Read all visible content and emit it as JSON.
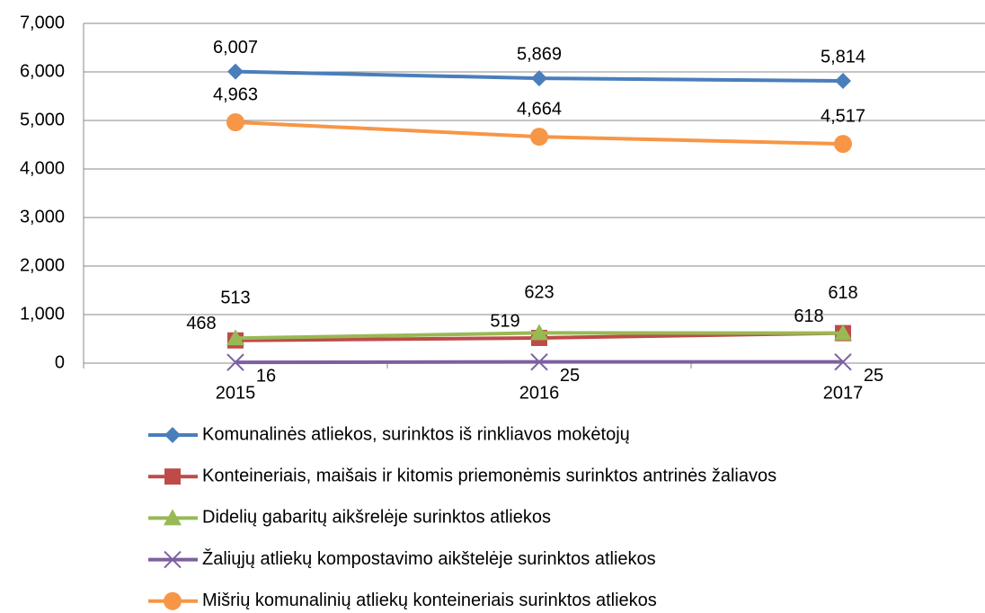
{
  "chart_data": {
    "type": "line",
    "categories": [
      "2015",
      "2016",
      "2017"
    ],
    "ylim": [
      0,
      7000
    ],
    "yticks": [
      0,
      {
        "value": 1000,
        "label": "1,000"
      },
      {
        "value": 2000,
        "label": "2,000"
      },
      {
        "value": 3000,
        "label": "3,000"
      },
      {
        "value": 4000,
        "label": "4,000"
      },
      {
        "value": 5000,
        "label": "5,000"
      },
      {
        "value": 6000,
        "label": "6,000"
      },
      {
        "value": 7000,
        "label": "7,000"
      }
    ],
    "grid": true,
    "legend": "bottom",
    "series": [
      {
        "name": "Komunalinės atliekos, surinktos iš rinkliavos mokėtojų",
        "color": "#4a7ebb",
        "marker": "diamond",
        "values": [
          6007,
          5869,
          5814
        ],
        "value_labels": [
          "6,007",
          "5,869",
          "5,814"
        ]
      },
      {
        "name": "Konteineriais, maišais ir kitomis priemonėmis surinktos antrinės žaliavos",
        "color": "#be4b48",
        "marker": "square",
        "values": [
          468,
          519,
          618
        ]
      },
      {
        "name": "Didelių gabaritų aikšrelėje surinktos atliekos",
        "color": "#98b954",
        "marker": "triangle",
        "values": [
          513,
          623,
          618
        ]
      },
      {
        "name": "Žaliųjų atliekų kompostavimo aikštelėje surinktos atliekos",
        "color": "#7d60a0",
        "marker": "x",
        "values": [
          16,
          25,
          25
        ]
      },
      {
        "name": "Mišrių komunalinių atliekų konteineriais surinktos atliekos",
        "color": "#f79646",
        "marker": "circle",
        "values": [
          4963,
          4664,
          4517
        ],
        "value_labels": [
          "4,963",
          "4,664",
          "4,517"
        ]
      }
    ]
  }
}
